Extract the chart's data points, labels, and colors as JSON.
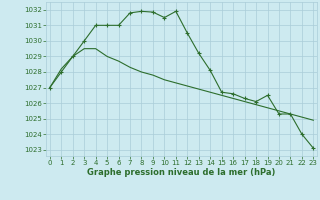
{
  "line1_x": [
    0,
    1,
    2,
    3,
    4,
    5,
    6,
    7,
    8,
    9,
    10,
    11,
    12,
    13,
    14,
    15,
    16,
    17,
    18,
    19,
    20,
    21,
    22,
    23
  ],
  "line1_y": [
    1027.0,
    1028.0,
    1029.0,
    1030.0,
    1031.0,
    1031.0,
    1031.0,
    1031.8,
    1031.9,
    1031.85,
    1031.5,
    1031.9,
    1030.5,
    1029.2,
    1028.1,
    1026.7,
    1026.6,
    1026.3,
    1026.1,
    1026.5,
    1025.3,
    1025.3,
    1024.0,
    1023.1
  ],
  "line2_x": [
    0,
    1,
    2,
    3,
    4,
    5,
    6,
    7,
    8,
    9,
    10,
    11,
    12,
    13,
    14,
    15,
    16,
    17,
    18,
    19,
    20,
    21,
    22,
    23
  ],
  "line2_y": [
    1027.0,
    1028.2,
    1029.0,
    1029.5,
    1029.5,
    1029.0,
    1028.7,
    1028.3,
    1028.0,
    1027.8,
    1027.5,
    1027.3,
    1027.1,
    1026.9,
    1026.7,
    1026.5,
    1026.3,
    1026.1,
    1025.9,
    1025.7,
    1025.5,
    1025.3,
    1025.1,
    1024.9
  ],
  "line_color": "#2d6e2d",
  "bg_color": "#cdeaf0",
  "grid_color": "#aacdd8",
  "ylabel_ticks": [
    1023,
    1024,
    1025,
    1026,
    1027,
    1028,
    1029,
    1030,
    1031,
    1032
  ],
  "xlabel_ticks": [
    0,
    1,
    2,
    3,
    4,
    5,
    6,
    7,
    8,
    9,
    10,
    11,
    12,
    13,
    14,
    15,
    16,
    17,
    18,
    19,
    20,
    21,
    22,
    23
  ],
  "xlabel": "Graphe pression niveau de la mer (hPa)",
  "ylim": [
    1022.6,
    1032.5
  ],
  "xlim": [
    -0.3,
    23.3
  ],
  "tick_fontsize": 5.0,
  "xlabel_fontsize": 6.0
}
